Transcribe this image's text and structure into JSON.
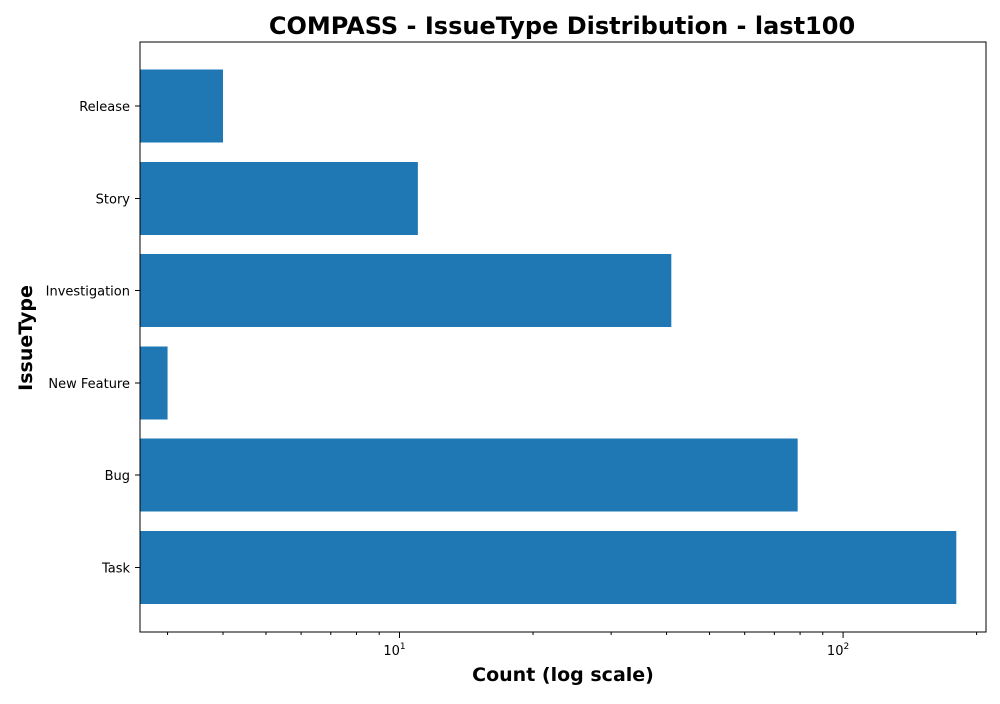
{
  "chart_data": {
    "type": "bar",
    "orientation": "horizontal",
    "title": "COMPASS - IssueType Distribution - last100",
    "xlabel": "Count (log scale)",
    "ylabel": "IssueType",
    "x_scale": "log",
    "xlim": [
      2.6,
      210
    ],
    "x_major_ticks": [
      {
        "value": 10,
        "base": "10",
        "exponent": "1"
      },
      {
        "value": 100,
        "base": "10",
        "exponent": "2"
      }
    ],
    "categories": [
      "Task",
      "Bug",
      "New Feature",
      "Investigation",
      "Story",
      "Release"
    ],
    "values": [
      180,
      79,
      3,
      41,
      11,
      4
    ],
    "bar_color": "#1f77b4",
    "grid": false,
    "legend": "none"
  }
}
